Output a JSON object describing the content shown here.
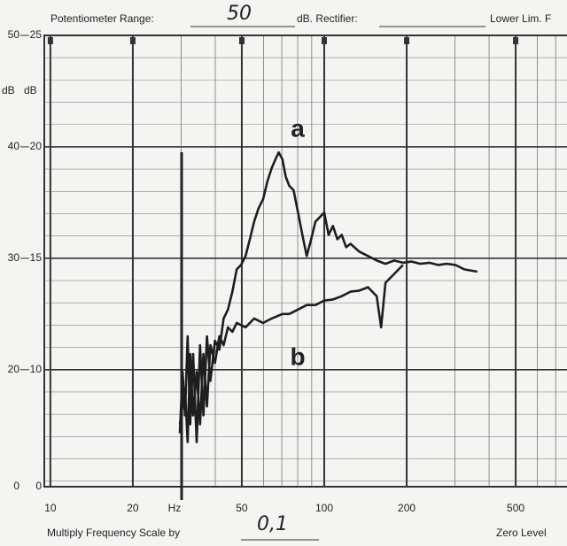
{
  "header": {
    "range_label": "Potentiometer Range:",
    "range_value": "50",
    "rectifier_label": "dB. Rectifier:",
    "lower_label": "Lower Lim. F"
  },
  "footer": {
    "multiply_label": "Multiply Frequency Scale by",
    "multiply_value": "0,1",
    "zero_label": "Zero Level"
  },
  "chart_data": {
    "type": "line",
    "x_log": true,
    "grid": true,
    "x_label": "Hz",
    "y_label": "dB",
    "y2_label": "dB",
    "y_bottom_label": "0",
    "y2_bottom_label": "0",
    "xlim": [
      9.5,
      770
    ],
    "xticks": [
      10,
      20,
      50,
      100,
      200,
      500
    ],
    "ylim": [
      9.5,
      50
    ],
    "yticks": [
      20,
      30,
      40,
      50
    ],
    "y2lim": [
      4.75,
      25
    ],
    "y2ticks": [
      10,
      15,
      20,
      25
    ],
    "annotations": [
      {
        "text": "a",
        "x": 80,
        "y": 41.5
      },
      {
        "text": "b",
        "x": 80,
        "y": 21
      }
    ],
    "series": [
      {
        "name": "a",
        "color": "#1e1e1e",
        "x": [
          29.7,
          30.4,
          31.0,
          31.7,
          32.4,
          33.2,
          34.2,
          35.2,
          36.2,
          37.3,
          38.4,
          39.9,
          41.4,
          42.9,
          44.5,
          46.2,
          47.9,
          49.7,
          51.6,
          53.5,
          55.5,
          57.6,
          59.8,
          62.0,
          64.3,
          66.7,
          68.2,
          70.3,
          72.4,
          74.5,
          77.3,
          80.2,
          83.2,
          86.3,
          89.6,
          92.9,
          96.4,
          100,
          103.7,
          107.6,
          111.7,
          115.8,
          120.2,
          124.7,
          134.2,
          144.5,
          155.5,
          167.4,
          180.2,
          194.0,
          208.6,
          224.6,
          241.7,
          260.2,
          280.1,
          301.4,
          324.5,
          362.2
        ],
        "values": [
          14.3,
          19.8,
          15.9,
          23.0,
          15.1,
          21.4,
          13.5,
          22.2,
          15.9,
          23.0,
          19.0,
          22.6,
          21.8,
          24.6,
          25.4,
          27.0,
          29.0,
          29.4,
          30.2,
          31.7,
          33.3,
          34.5,
          35.3,
          36.9,
          38.1,
          39.0,
          39.5,
          38.9,
          37.3,
          36.5,
          36.1,
          34.1,
          32.1,
          30.2,
          31.7,
          33.3,
          33.7,
          34.1,
          32.1,
          32.9,
          31.7,
          32.1,
          31.0,
          31.3,
          30.6,
          30.2,
          29.8,
          29.5,
          29.8,
          29.6,
          29.7,
          29.5,
          29.6,
          29.4,
          29.5,
          29.4,
          29.0,
          28.8
        ]
      },
      {
        "name": "b",
        "color": "#1e1e1e",
        "x": [
          29.7,
          31.0,
          31.7,
          32.4,
          33.2,
          34.2,
          35.2,
          36.2,
          37.3,
          38.4,
          39.9,
          41.4,
          42.9,
          44.5,
          46.2,
          47.9,
          51.6,
          55.5,
          59.8,
          64.3,
          70.3,
          74.5,
          80.2,
          86.3,
          92.9,
          100,
          107.6,
          115.8,
          124.7,
          134.2,
          144.5,
          155.5,
          161.4,
          167.4,
          180.2,
          194.0
        ],
        "values": [
          15.1,
          18.3,
          13.5,
          21.4,
          15.9,
          19.8,
          15.1,
          21.4,
          16.7,
          22.2,
          20.6,
          23.0,
          22.2,
          23.8,
          23.4,
          24.2,
          23.8,
          24.6,
          24.2,
          24.6,
          25.0,
          25.0,
          25.4,
          25.8,
          25.8,
          26.2,
          26.3,
          26.6,
          27.0,
          27.1,
          27.4,
          26.6,
          23.8,
          27.8,
          28.6,
          29.4
        ]
      }
    ]
  }
}
